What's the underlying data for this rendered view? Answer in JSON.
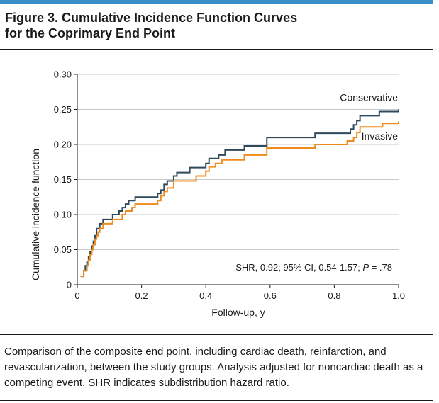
{
  "figure": {
    "title_line1": "Figure 3. Cumulative Incidence Function Curves",
    "title_line2": "for the Coprimary End Point",
    "caption": "Comparison of the composite end point, including cardiac death, reinfarction, and revascularization, between the study groups. Analysis adjusted for noncardiac death as a competing event. SHR indicates subdistribution hazard ratio."
  },
  "colors": {
    "accent_rule": "#3a8fc6",
    "conservative": "#2e4a5c",
    "invasive": "#f08c1f",
    "grid": "#c8c8c8"
  },
  "chart_data": {
    "type": "line",
    "title": "",
    "xlabel": "Follow-up, y",
    "ylabel": "Cumulative incidence function",
    "xlim": [
      0,
      1.0
    ],
    "ylim": [
      0,
      0.3
    ],
    "xticks": [
      0,
      0.2,
      0.4,
      0.6,
      0.8,
      1.0
    ],
    "xtick_labels": [
      "0",
      "0.2",
      "0.4",
      "0.6",
      "0.8",
      "1.0"
    ],
    "yticks": [
      0,
      0.05,
      0.1,
      0.15,
      0.2,
      0.25,
      0.3
    ],
    "ytick_labels": [
      "0",
      "0.05",
      "0.10",
      "0.15",
      "0.20",
      "0.25",
      "0.30"
    ],
    "grid": "horizontal",
    "step": true,
    "series": [
      {
        "name": "Conservative",
        "color_key": "conservative",
        "x": [
          0.01,
          0.02,
          0.025,
          0.03,
          0.035,
          0.04,
          0.045,
          0.05,
          0.055,
          0.06,
          0.07,
          0.08,
          0.11,
          0.13,
          0.14,
          0.15,
          0.16,
          0.18,
          0.25,
          0.26,
          0.27,
          0.28,
          0.3,
          0.31,
          0.35,
          0.4,
          0.41,
          0.44,
          0.46,
          0.52,
          0.59,
          0.74,
          0.85,
          0.86,
          0.87,
          0.88,
          0.94,
          1.0
        ],
        "y": [
          0.012,
          0.02,
          0.027,
          0.032,
          0.04,
          0.047,
          0.055,
          0.062,
          0.07,
          0.08,
          0.087,
          0.093,
          0.1,
          0.105,
          0.11,
          0.115,
          0.12,
          0.125,
          0.13,
          0.135,
          0.143,
          0.148,
          0.155,
          0.16,
          0.167,
          0.173,
          0.18,
          0.185,
          0.192,
          0.198,
          0.21,
          0.216,
          0.222,
          0.228,
          0.234,
          0.241,
          0.247,
          0.25
        ]
      },
      {
        "name": "Invasive",
        "color_key": "invasive",
        "x": [
          0.01,
          0.02,
          0.03,
          0.035,
          0.04,
          0.045,
          0.05,
          0.055,
          0.06,
          0.065,
          0.07,
          0.08,
          0.11,
          0.14,
          0.15,
          0.17,
          0.18,
          0.25,
          0.26,
          0.27,
          0.28,
          0.3,
          0.37,
          0.4,
          0.41,
          0.43,
          0.45,
          0.52,
          0.59,
          0.74,
          0.84,
          0.86,
          0.87,
          0.88,
          0.95,
          1.0
        ],
        "y": [
          0.012,
          0.02,
          0.027,
          0.035,
          0.043,
          0.05,
          0.057,
          0.065,
          0.07,
          0.075,
          0.08,
          0.087,
          0.093,
          0.1,
          0.105,
          0.11,
          0.115,
          0.12,
          0.127,
          0.133,
          0.138,
          0.148,
          0.155,
          0.162,
          0.168,
          0.173,
          0.178,
          0.185,
          0.195,
          0.2,
          0.205,
          0.21,
          0.217,
          0.225,
          0.23,
          0.233
        ]
      }
    ],
    "series_labels": [
      {
        "text": "Conservative",
        "anchor_x": 1.0,
        "anchor_y": 0.262
      },
      {
        "text": "Invasive",
        "anchor_x": 1.0,
        "anchor_y": 0.207
      }
    ],
    "annotation_prefix": "SHR, 0.92; 95% CI, 0.54-1.57; ",
    "annotation_p": "P",
    "annotation_suffix": " = .78"
  }
}
